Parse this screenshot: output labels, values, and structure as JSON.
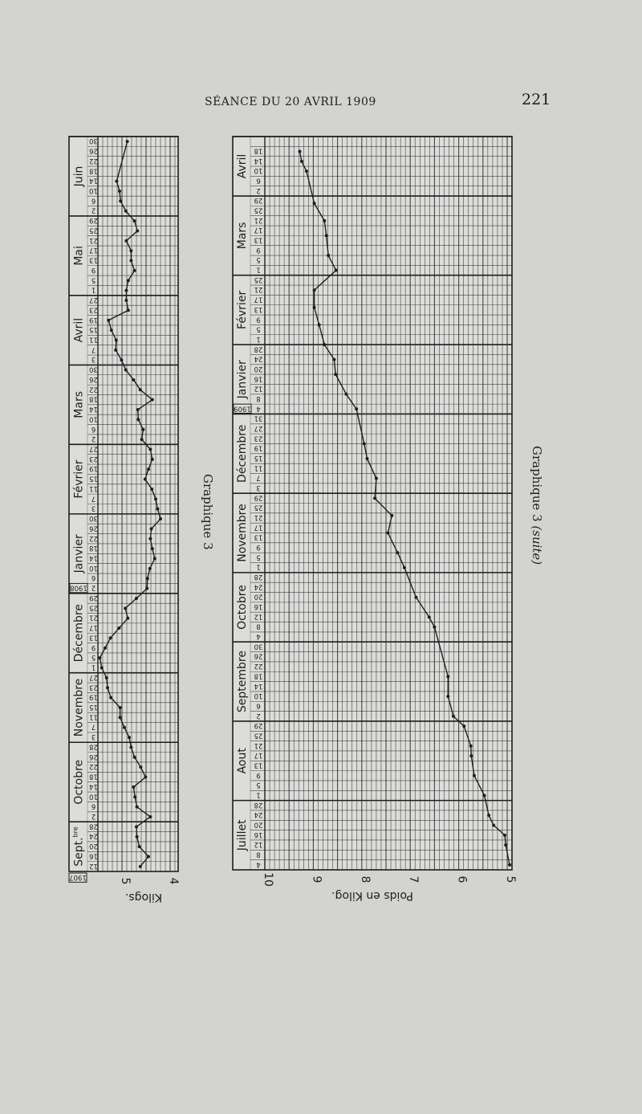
{
  "page": {
    "header": "SÉANCE DU 20 AVRIL 1909",
    "page_number": "221",
    "background_color": "#d3d3d1",
    "ink_color": "#1e1e1e"
  },
  "chart_data": [
    {
      "type": "line",
      "title": "Graphique 3",
      "time_axis": "vertical, earliest at bottom",
      "value_axis": "horizontal, weight decreasing to the right",
      "xlabel": "Kilogs.",
      "ticks": [
        {
          "label": "5",
          "kg": 5
        },
        {
          "label": "4",
          "kg": 4
        }
      ],
      "xlim": [
        3.83,
        5.5
      ],
      "grid": true,
      "months": [
        {
          "name": "Sept.",
          "sup": "bre",
          "year": "1907",
          "days": [
            "12",
            "16",
            "20",
            "24",
            "28"
          ]
        },
        {
          "name": "Octobre",
          "days": [
            "2",
            "6",
            "10",
            "14",
            "18",
            "22",
            "26",
            "28"
          ]
        },
        {
          "name": "Novembre",
          "days": [
            "3",
            "7",
            "11",
            "15",
            "19",
            "23",
            "27"
          ]
        },
        {
          "name": "Décembre",
          "days": [
            "1",
            "5",
            "9",
            "13",
            "17",
            "21",
            "25",
            "29"
          ]
        },
        {
          "name": "Janvier",
          "year": "1908",
          "days": [
            "2",
            "6",
            "10",
            "14",
            "18",
            "22",
            "26",
            "30"
          ]
        },
        {
          "name": "Février",
          "days": [
            "3",
            "7",
            "11",
            "15",
            "19",
            "23",
            "27"
          ]
        },
        {
          "name": "Mars",
          "days": [
            "2",
            "6",
            "10",
            "14",
            "18",
            "22",
            "26",
            "30"
          ]
        },
        {
          "name": "Avril",
          "days": [
            "3",
            "7",
            "11",
            "15",
            "19",
            "23",
            "27"
          ]
        },
        {
          "name": "Mai",
          "days": [
            "1",
            "5",
            "9",
            "13",
            "17",
            "21",
            "25",
            "29"
          ]
        },
        {
          "name": "Juin",
          "days": [
            "2",
            "6",
            "10",
            "14",
            "18",
            "22",
            "26",
            "30"
          ]
        }
      ],
      "points": [
        {
          "date": "1907-09-12",
          "kg": 4.62
        },
        {
          "date": "1907-09-16",
          "kg": 4.45
        },
        {
          "date": "1907-09-20",
          "kg": 4.64
        },
        {
          "date": "1907-09-24",
          "kg": 4.69
        },
        {
          "date": "1907-09-28",
          "kg": 4.7
        },
        {
          "date": "1907-10-02",
          "kg": 4.41
        },
        {
          "date": "1907-10-06",
          "kg": 4.69
        },
        {
          "date": "1907-10-10",
          "kg": 4.73
        },
        {
          "date": "1907-10-14",
          "kg": 4.76
        },
        {
          "date": "1907-10-18",
          "kg": 4.51
        },
        {
          "date": "1907-10-22",
          "kg": 4.61
        },
        {
          "date": "1907-10-26",
          "kg": 4.74
        },
        {
          "date": "1907-10-30",
          "kg": 4.81
        },
        {
          "date": "1907-11-03",
          "kg": 4.85
        },
        {
          "date": "1907-11-07",
          "kg": 4.95
        },
        {
          "date": "1907-11-11",
          "kg": 5.04
        },
        {
          "date": "1907-11-15",
          "kg": 5.04
        },
        {
          "date": "1907-11-19",
          "kg": 5.23
        },
        {
          "date": "1907-11-23",
          "kg": 5.3
        },
        {
          "date": "1907-11-27",
          "kg": 5.32
        },
        {
          "date": "1907-12-01",
          "kg": 5.42
        },
        {
          "date": "1907-12-05",
          "kg": 5.46
        },
        {
          "date": "1907-12-09",
          "kg": 5.35
        },
        {
          "date": "1907-12-13",
          "kg": 5.24
        },
        {
          "date": "1907-12-17",
          "kg": 5.06
        },
        {
          "date": "1907-12-21",
          "kg": 4.88
        },
        {
          "date": "1907-12-25",
          "kg": 4.93
        },
        {
          "date": "1907-12-29",
          "kg": 4.7
        },
        {
          "date": "1908-01-02",
          "kg": 4.48
        },
        {
          "date": "1908-01-06",
          "kg": 4.47
        },
        {
          "date": "1908-01-10",
          "kg": 4.42
        },
        {
          "date": "1908-01-14",
          "kg": 4.32
        },
        {
          "date": "1908-01-18",
          "kg": 4.37
        },
        {
          "date": "1908-01-22",
          "kg": 4.41
        },
        {
          "date": "1908-01-26",
          "kg": 4.39
        },
        {
          "date": "1908-01-30",
          "kg": 4.2
        },
        {
          "date": "1908-02-03",
          "kg": 4.26
        },
        {
          "date": "1908-02-07",
          "kg": 4.3
        },
        {
          "date": "1908-02-11",
          "kg": 4.38
        },
        {
          "date": "1908-02-15",
          "kg": 4.52
        },
        {
          "date": "1908-02-19",
          "kg": 4.45
        },
        {
          "date": "1908-02-23",
          "kg": 4.37
        },
        {
          "date": "1908-02-27",
          "kg": 4.41
        },
        {
          "date": "1908-03-02",
          "kg": 4.59
        },
        {
          "date": "1908-03-06",
          "kg": 4.56
        },
        {
          "date": "1908-03-10",
          "kg": 4.66
        },
        {
          "date": "1908-03-14",
          "kg": 4.67
        },
        {
          "date": "1908-03-18",
          "kg": 4.37
        },
        {
          "date": "1908-03-22",
          "kg": 4.62
        },
        {
          "date": "1908-03-26",
          "kg": 4.76
        },
        {
          "date": "1908-03-30",
          "kg": 4.92
        },
        {
          "date": "1908-04-03",
          "kg": 5.01
        },
        {
          "date": "1908-04-07",
          "kg": 5.13
        },
        {
          "date": "1908-04-11",
          "kg": 5.12
        },
        {
          "date": "1908-04-15",
          "kg": 5.22
        },
        {
          "date": "1908-04-19",
          "kg": 5.28
        },
        {
          "date": "1908-04-23",
          "kg": 4.87
        },
        {
          "date": "1908-04-27",
          "kg": 4.91
        },
        {
          "date": "1908-05-01",
          "kg": 4.91
        },
        {
          "date": "1908-05-05",
          "kg": 4.87
        },
        {
          "date": "1908-05-09",
          "kg": 4.74
        },
        {
          "date": "1908-05-13",
          "kg": 4.81
        },
        {
          "date": "1908-05-17",
          "kg": 4.81
        },
        {
          "date": "1908-05-21",
          "kg": 4.91
        },
        {
          "date": "1908-05-25",
          "kg": 4.68
        },
        {
          "date": "1908-05-29",
          "kg": 4.74
        },
        {
          "date": "1908-06-02",
          "kg": 4.92
        },
        {
          "date": "1908-06-06",
          "kg": 5.03
        },
        {
          "date": "1908-06-10",
          "kg": 5.05
        },
        {
          "date": "1908-06-14",
          "kg": 5.11
        },
        {
          "date": "1908-06-30",
          "kg": 4.89
        }
      ]
    },
    {
      "type": "line",
      "title": "Graphique 3",
      "title_suffix": "(suite)",
      "time_axis": "vertical, earliest at bottom",
      "value_axis": "horizontal, weight decreasing to the right",
      "xlabel": "Poids en Kilog.",
      "ticks": [
        {
          "label": "10",
          "kg": 10
        },
        {
          "label": "9",
          "kg": 9
        },
        {
          "label": "8",
          "kg": 8
        },
        {
          "label": "7",
          "kg": 7
        },
        {
          "label": "6",
          "kg": 6
        },
        {
          "label": "5",
          "kg": 5
        }
      ],
      "xlim": [
        4.9,
        10
      ],
      "grid": true,
      "months": [
        {
          "name": "Juillet",
          "days": [
            "4",
            "8",
            "12",
            "16",
            "20",
            "24",
            "28"
          ]
        },
        {
          "name": "Aout",
          "days": [
            "1",
            "5",
            "9",
            "13",
            "17",
            "21",
            "25",
            "29"
          ]
        },
        {
          "name": "Septembre",
          "days": [
            "2",
            "6",
            "10",
            "14",
            "18",
            "22",
            "26",
            "30"
          ]
        },
        {
          "name": "Octobre",
          "days": [
            "4",
            "8",
            "12",
            "16",
            "20",
            "24",
            "28"
          ]
        },
        {
          "name": "Novembre",
          "days": [
            "1",
            "5",
            "9",
            "13",
            "17",
            "21",
            "25",
            "29"
          ]
        },
        {
          "name": "Décembre",
          "days": [
            "3",
            "7",
            "11",
            "15",
            "19",
            "23",
            "27",
            "31"
          ]
        },
        {
          "name": "Janvier",
          "year": "1909",
          "days": [
            "4",
            "8",
            "12",
            "16",
            "20",
            "24",
            "28"
          ]
        },
        {
          "name": "Février",
          "days": [
            "1",
            "5",
            "9",
            "13",
            "17",
            "21",
            "25"
          ]
        },
        {
          "name": "Mars",
          "days": [
            "1",
            "5",
            "9",
            "13",
            "17",
            "21",
            "25",
            "29"
          ]
        },
        {
          "name": "Avril",
          "days": [
            "2",
            "6",
            "10",
            "14",
            "18"
          ]
        }
      ],
      "points": [
        {
          "date": "1908-07-04",
          "kg": 4.95
        },
        {
          "date": "1908-07-12",
          "kg": 5.03
        },
        {
          "date": "1908-07-16",
          "kg": 5.05
        },
        {
          "date": "1908-07-20",
          "kg": 5.28
        },
        {
          "date": "1908-07-24",
          "kg": 5.38
        },
        {
          "date": "1908-08-01",
          "kg": 5.47
        },
        {
          "date": "1908-08-09",
          "kg": 5.68
        },
        {
          "date": "1908-08-17",
          "kg": 5.74
        },
        {
          "date": "1908-08-21",
          "kg": 5.75
        },
        {
          "date": "1908-08-29",
          "kg": 5.89
        },
        {
          "date": "1908-09-02",
          "kg": 6.11
        },
        {
          "date": "1908-09-10",
          "kg": 6.22
        },
        {
          "date": "1908-09-18",
          "kg": 6.22
        },
        {
          "date": "1908-10-08",
          "kg": 6.5
        },
        {
          "date": "1908-10-12",
          "kg": 6.61
        },
        {
          "date": "1908-10-20",
          "kg": 6.88
        },
        {
          "date": "1908-11-01",
          "kg": 7.12
        },
        {
          "date": "1908-11-07",
          "kg": 7.26
        },
        {
          "date": "1908-11-15",
          "kg": 7.46
        },
        {
          "date": "1908-11-22",
          "kg": 7.38
        },
        {
          "date": "1908-11-29",
          "kg": 7.73
        },
        {
          "date": "1908-12-07",
          "kg": 7.7
        },
        {
          "date": "1908-12-15",
          "kg": 7.89
        },
        {
          "date": "1908-12-21",
          "kg": 7.95
        },
        {
          "date": "1909-01-04",
          "kg": 8.11
        },
        {
          "date": "1909-01-10",
          "kg": 8.32
        },
        {
          "date": "1909-01-18",
          "kg": 8.54
        },
        {
          "date": "1909-01-24",
          "kg": 8.57
        },
        {
          "date": "1909-01-30",
          "kg": 8.77
        },
        {
          "date": "1909-02-07",
          "kg": 8.88
        },
        {
          "date": "1909-02-14",
          "kg": 8.98
        },
        {
          "date": "1909-02-21",
          "kg": 8.98
        },
        {
          "date": "1909-03-01",
          "kg": 8.53
        },
        {
          "date": "1909-03-07",
          "kg": 8.69
        },
        {
          "date": "1909-03-15",
          "kg": 8.73
        },
        {
          "date": "1909-03-21",
          "kg": 8.77
        },
        {
          "date": "1909-03-28",
          "kg": 8.98
        },
        {
          "date": "1909-04-10",
          "kg": 9.14
        },
        {
          "date": "1909-04-14",
          "kg": 9.24
        },
        {
          "date": "1909-04-18",
          "kg": 9.28
        }
      ]
    }
  ]
}
